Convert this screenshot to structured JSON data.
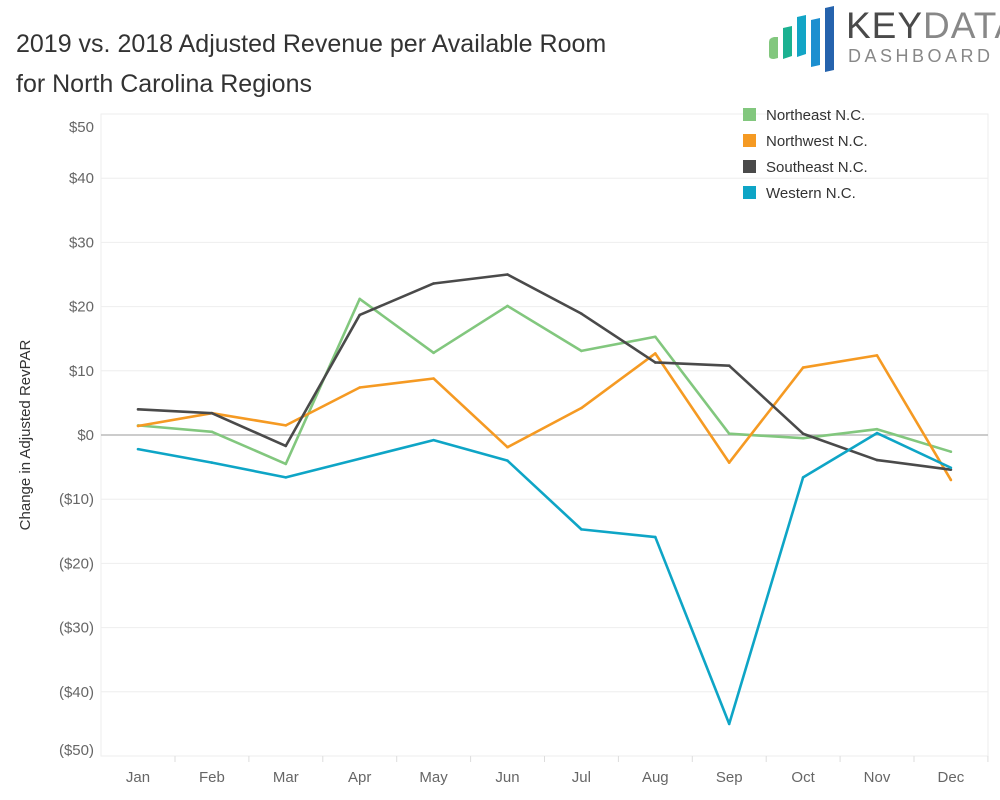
{
  "title_line1": "2019 vs. 2018 Adjusted Revenue per Available Room",
  "title_line2": "for North Carolina Regions",
  "logo": {
    "text1": "KEY",
    "text2": "DATA",
    "text3": "DASHBOARD",
    "tm": "™"
  },
  "chart_data": {
    "type": "line",
    "title": "2019 vs. 2018 Adjusted Revenue per Available Room for North Carolina Regions",
    "xlabel": "",
    "ylabel": "Change in Adjusted RevPAR",
    "ylim": [
      -50,
      50
    ],
    "yticks": [
      50,
      40,
      30,
      20,
      10,
      0,
      -10,
      -20,
      -30,
      -40,
      -50
    ],
    "ytick_labels": [
      "$50",
      "$40",
      "$30",
      "$20",
      "$10",
      "$0",
      "($10)",
      "($20)",
      "($30)",
      "($40)",
      "($50)"
    ],
    "categories": [
      "Jan",
      "Feb",
      "Mar",
      "Apr",
      "May",
      "Jun",
      "Jul",
      "Aug",
      "Sep",
      "Oct",
      "Nov",
      "Dec"
    ],
    "legend_position": "top-right",
    "series": [
      {
        "name": "Northeast N.C.",
        "color": "#82c77e",
        "values": [
          1.5,
          0.5,
          -4.5,
          21.2,
          12.8,
          20.1,
          13.1,
          15.3,
          0.2,
          -0.5,
          0.9,
          -2.6
        ]
      },
      {
        "name": "Northwest N.C.",
        "color": "#f59a23",
        "values": [
          1.4,
          3.4,
          1.5,
          7.4,
          8.8,
          -1.9,
          4.2,
          12.7,
          -4.3,
          10.5,
          12.4,
          -7.0
        ]
      },
      {
        "name": "Southeast N.C.",
        "color": "#4a4a4a",
        "values": [
          4.0,
          3.4,
          -1.7,
          18.7,
          23.6,
          25.0,
          18.9,
          11.3,
          10.8,
          0.2,
          -3.9,
          -5.4
        ]
      },
      {
        "name": "Western N.C.",
        "color": "#0ea5c6",
        "values": [
          -2.2,
          -4.3,
          -6.6,
          -3.7,
          -0.8,
          -4.0,
          -14.7,
          -15.9,
          -45.0,
          -6.6,
          0.3,
          -5.1
        ]
      }
    ]
  }
}
